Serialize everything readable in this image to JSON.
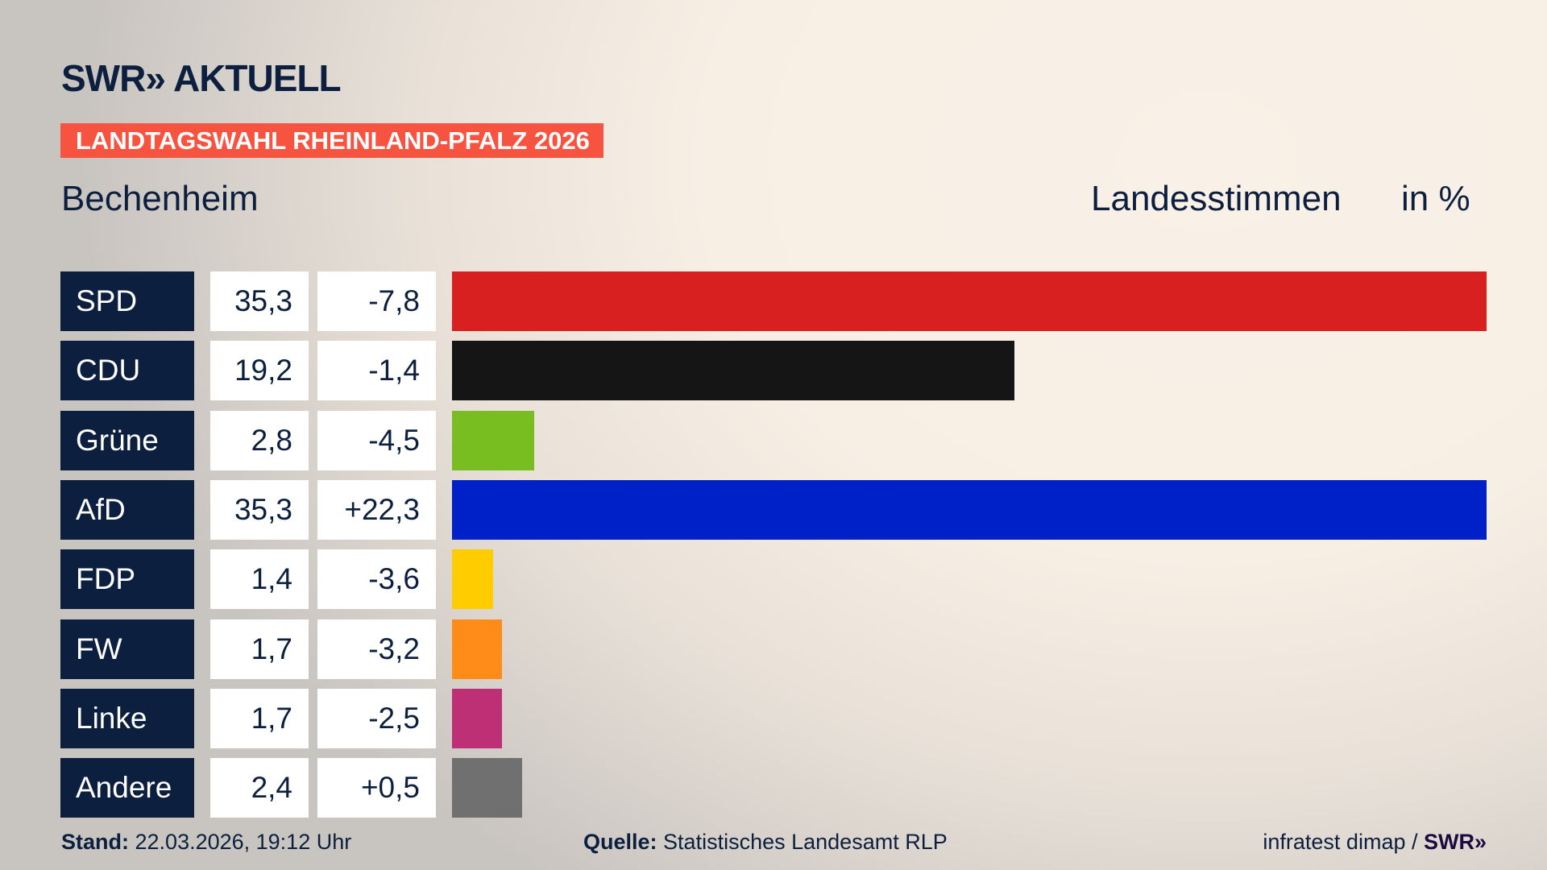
{
  "header": {
    "logo": "SWR» AKTUELL",
    "banner": "LANDTAGSWAHL RHEINLAND-PFALZ 2026",
    "region": "Bechenheim",
    "vote_type": "Landesstimmen",
    "unit": "in %"
  },
  "chart_data": {
    "type": "bar",
    "orientation": "horizontal",
    "categories": [
      "SPD",
      "CDU",
      "Grüne",
      "AfD",
      "FDP",
      "FW",
      "Linke",
      "Andere"
    ],
    "values": [
      35.3,
      19.2,
      2.8,
      35.3,
      1.4,
      1.7,
      1.7,
      2.4
    ],
    "value_labels": [
      "35,3",
      "19,2",
      "2,8",
      "35,3",
      "1,4",
      "1,7",
      "1,7",
      "2,4"
    ],
    "change_labels": [
      "-7,8",
      "-1,4",
      "-4,5",
      "+22,3",
      "-3,6",
      "-3,2",
      "-2,5",
      "+0,5"
    ],
    "changes": [
      -7.8,
      -1.4,
      -4.5,
      22.3,
      -3.6,
      -3.2,
      -2.5,
      0.5
    ],
    "colors": [
      "#d82020",
      "#151515",
      "#78be20",
      "#0021c8",
      "#ffcc00",
      "#ff8c19",
      "#be3075",
      "#707070"
    ],
    "xlim": [
      0,
      35.3
    ]
  },
  "footer": {
    "stand_label": "Stand:",
    "stand_value": "22.03.2026, 19:12 Uhr",
    "source_label": "Quelle:",
    "source_value": "Statistisches Landesamt RLP",
    "credit": "infratest dimap / ",
    "credit_logo": "SWR»"
  }
}
